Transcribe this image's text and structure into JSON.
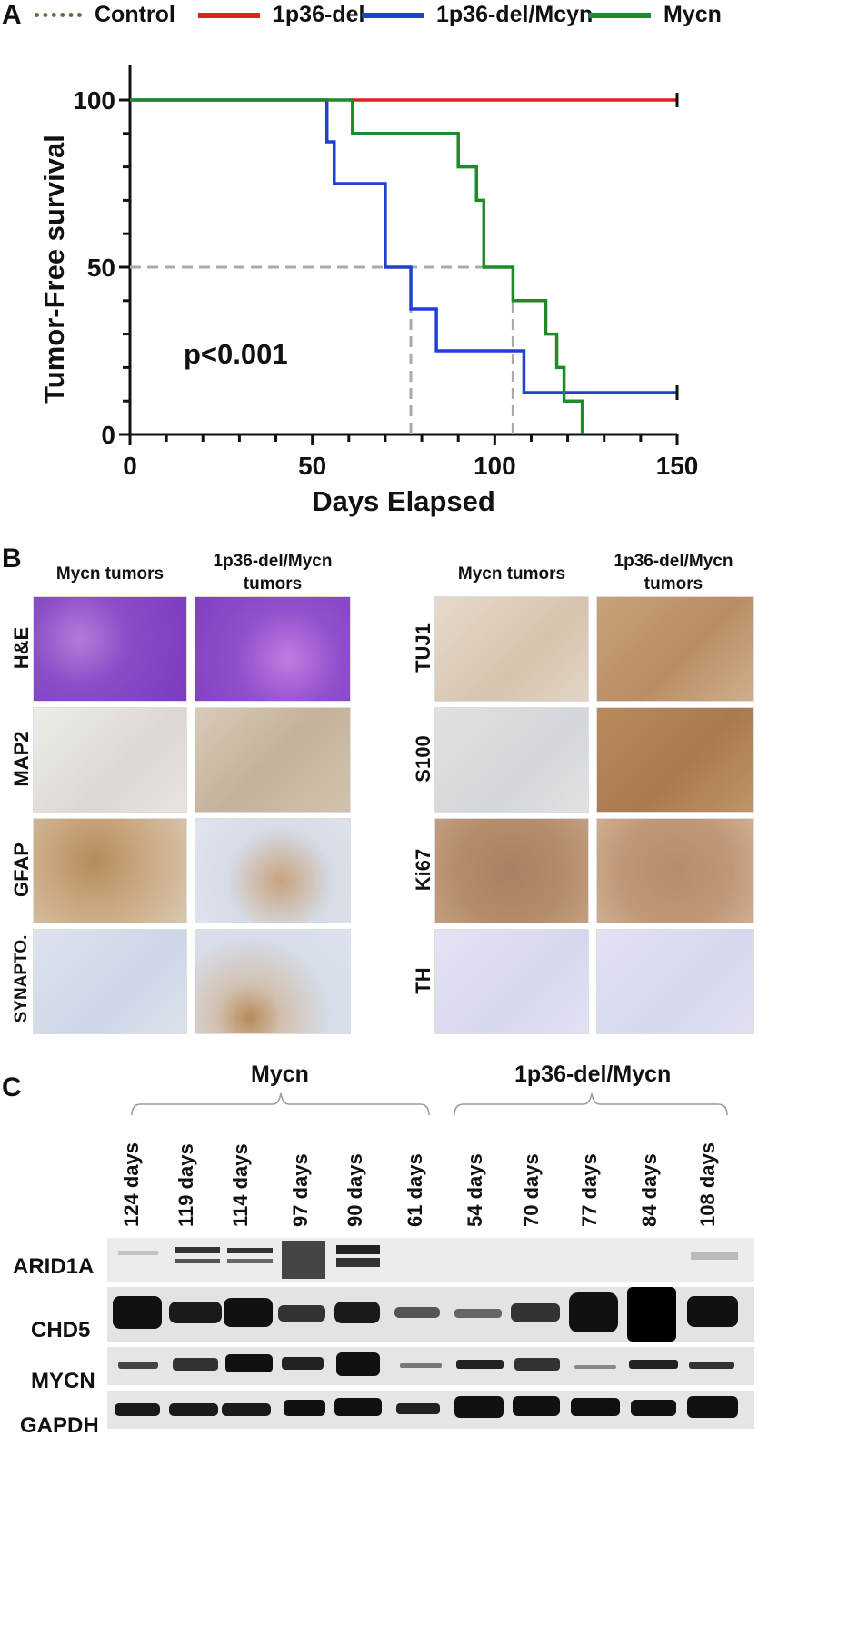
{
  "panel_a": {
    "letter": "A",
    "legend": [
      {
        "label": "Control",
        "color": "#6b6b4a",
        "style": "dotted"
      },
      {
        "label": "1p36-del",
        "color": "#e02020",
        "style": "solid"
      },
      {
        "label": "1p36-del/Mcyn",
        "color": "#1f3fd6",
        "style": "solid"
      },
      {
        "label": "Mycn",
        "color": "#1e8a2a",
        "style": "solid"
      }
    ],
    "pvalue": "p<0.001"
  },
  "chart_data": {
    "type": "line",
    "xlabel": "Days Elapsed",
    "ylabel": "Tumor-Free survival",
    "xlim": [
      0,
      150
    ],
    "ylim": [
      0,
      100
    ],
    "xticks": [
      "0",
      "50",
      "100",
      "150"
    ],
    "yticks": [
      "0",
      "50",
      "100"
    ],
    "series": [
      {
        "name": "Control",
        "color": "#6b6b4a",
        "style": "dotted",
        "x": [
          0,
          150
        ],
        "y": [
          100,
          100
        ]
      },
      {
        "name": "1p36-del",
        "color": "#e02020",
        "style": "solid",
        "x": [
          60,
          150
        ],
        "y": [
          100,
          100
        ]
      },
      {
        "name": "1p36-del/Mcyn",
        "color": "#1f3fd6",
        "style": "step",
        "x": [
          0,
          54,
          56,
          70,
          77,
          84,
          108,
          150
        ],
        "y": [
          100,
          87.5,
          75,
          50,
          37.5,
          25,
          12.5,
          12.5
        ]
      },
      {
        "name": "Mycn",
        "color": "#1e8a2a",
        "style": "step",
        "x": [
          0,
          61,
          90,
          95,
          97,
          105,
          114,
          117,
          119,
          124
        ],
        "y": [
          100,
          90,
          80,
          70,
          50,
          40,
          30,
          20,
          10,
          0
        ]
      }
    ],
    "median_lines": [
      {
        "x": 77,
        "y": 50
      },
      {
        "x": 105,
        "y": 50
      }
    ],
    "annotation": "p<0.001"
  },
  "panel_b": {
    "letter": "B",
    "left_headers": [
      "Mycn tumors",
      "1p36-del/Mycn tumors"
    ],
    "right_headers": [
      "Mycn tumors",
      "1p36-del/Mycn tumors"
    ],
    "left_rows": [
      "H&E",
      "MAP2",
      "GFAP",
      "SYNAPTO."
    ],
    "right_rows": [
      "TUJ1",
      "S100",
      "Ki67",
      "TH"
    ]
  },
  "panel_c": {
    "letter": "C",
    "groups": [
      "Mycn",
      "1p36-del/Mycn"
    ],
    "lanes": [
      "124 days",
      "119 days",
      "114 days",
      "97 days",
      "90 days",
      "61 days",
      "54 days",
      "70 days",
      "77 days",
      "84 days",
      "108 days"
    ],
    "proteins": [
      "ARID1A",
      "CHD5",
      "MYCN",
      "GAPDH"
    ]
  }
}
